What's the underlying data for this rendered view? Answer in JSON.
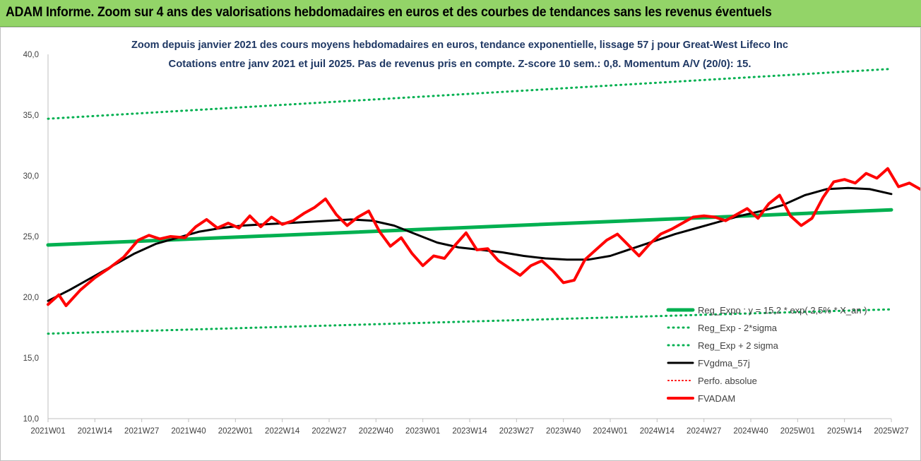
{
  "banner": {
    "title": "ADAM Informe. Zoom sur 4 ans des valorisations hebdomadaires en euros et des courbes de tendances sans les revenus éventuels"
  },
  "chart_data": {
    "type": "line",
    "title": "Zoom depuis janvier 2021 des cours moyens hebdomadaires en euros, tendance exponentielle, lissage 57 j pour Great-West Lifeco Inc",
    "subtitle": "Cotations entre janv 2021 et juil 2025. Pas de revenus pris en compte. Z-score 10 sem.: 0,8. Momentum A/V (20/0): 15.",
    "ylim": [
      10,
      40
    ],
    "yticks": [
      "10,0",
      "15,0",
      "20,0",
      "25,0",
      "30,0",
      "35,0",
      "40,0"
    ],
    "x_tick_labels": [
      "2021W01",
      "2021W14",
      "2021W27",
      "2021W40",
      "2022W01",
      "2022W14",
      "2022W27",
      "2022W40",
      "2023W01",
      "2023W14",
      "2023W27",
      "2023W40",
      "2024W01",
      "2024W14",
      "2024W27",
      "2024W40",
      "2025W01",
      "2025W14",
      "2025W27"
    ],
    "grid": false,
    "legend_position": "bottom-right",
    "series": [
      {
        "name": "Reg_Expo : y = 15,2 * exp( 2,5% * X_an )",
        "color": "#00b050",
        "style": "solid",
        "points": [
          [
            0,
            24.3
          ],
          [
            234,
            27.2
          ]
        ]
      },
      {
        "name": "Reg_Exp - 2*sigma",
        "color": "#00b050",
        "style": "dotted",
        "points": [
          [
            0,
            17.0
          ],
          [
            234,
            19.0
          ]
        ]
      },
      {
        "name": "Reg_Exp + 2 sigma",
        "color": "#00b050",
        "style": "dotted",
        "points": [
          [
            0,
            34.7
          ],
          [
            234,
            38.8
          ]
        ]
      },
      {
        "name": "FVgdma_57j",
        "color": "#000000",
        "style": "solid",
        "points": [
          [
            0,
            19.7
          ],
          [
            6,
            20.6
          ],
          [
            12,
            21.6
          ],
          [
            18,
            22.6
          ],
          [
            24,
            23.6
          ],
          [
            30,
            24.4
          ],
          [
            36,
            24.9
          ],
          [
            42,
            25.4
          ],
          [
            48,
            25.7
          ],
          [
            54,
            25.9
          ],
          [
            60,
            26.0
          ],
          [
            66,
            26.1
          ],
          [
            72,
            26.2
          ],
          [
            78,
            26.3
          ],
          [
            84,
            26.4
          ],
          [
            90,
            26.3
          ],
          [
            96,
            25.9
          ],
          [
            102,
            25.2
          ],
          [
            108,
            24.5
          ],
          [
            114,
            24.1
          ],
          [
            120,
            23.9
          ],
          [
            126,
            23.7
          ],
          [
            132,
            23.4
          ],
          [
            138,
            23.2
          ],
          [
            144,
            23.1
          ],
          [
            150,
            23.1
          ],
          [
            156,
            23.4
          ],
          [
            162,
            24.0
          ],
          [
            168,
            24.6
          ],
          [
            174,
            25.2
          ],
          [
            180,
            25.7
          ],
          [
            186,
            26.2
          ],
          [
            192,
            26.7
          ],
          [
            198,
            27.1
          ],
          [
            204,
            27.6
          ],
          [
            210,
            28.4
          ],
          [
            216,
            28.9
          ],
          [
            222,
            29.0
          ],
          [
            228,
            28.9
          ],
          [
            234,
            28.5
          ]
        ]
      },
      {
        "name": "Perfo. absolue",
        "color": "#ff0000",
        "style": "dotted",
        "points": []
      },
      {
        "name": "FVADAM",
        "color": "#ff0000",
        "style": "solid",
        "points": [
          [
            0,
            19.4
          ],
          [
            3,
            20.2
          ],
          [
            5,
            19.3
          ],
          [
            9,
            20.6
          ],
          [
            13,
            21.6
          ],
          [
            17,
            22.4
          ],
          [
            21,
            23.3
          ],
          [
            25,
            24.7
          ],
          [
            28,
            25.1
          ],
          [
            31,
            24.8
          ],
          [
            34,
            25.0
          ],
          [
            38,
            24.9
          ],
          [
            41,
            25.8
          ],
          [
            44,
            26.4
          ],
          [
            47,
            25.7
          ],
          [
            50,
            26.1
          ],
          [
            53,
            25.7
          ],
          [
            56,
            26.7
          ],
          [
            59,
            25.8
          ],
          [
            62,
            26.6
          ],
          [
            65,
            26.0
          ],
          [
            68,
            26.3
          ],
          [
            71,
            26.9
          ],
          [
            74,
            27.4
          ],
          [
            77,
            28.1
          ],
          [
            80,
            26.8
          ],
          [
            83,
            25.9
          ],
          [
            86,
            26.6
          ],
          [
            89,
            27.1
          ],
          [
            92,
            25.4
          ],
          [
            95,
            24.2
          ],
          [
            98,
            24.9
          ],
          [
            101,
            23.6
          ],
          [
            104,
            22.6
          ],
          [
            107,
            23.4
          ],
          [
            110,
            23.2
          ],
          [
            113,
            24.3
          ],
          [
            116,
            25.3
          ],
          [
            119,
            23.9
          ],
          [
            122,
            24.0
          ],
          [
            125,
            23.0
          ],
          [
            128,
            22.4
          ],
          [
            131,
            21.8
          ],
          [
            134,
            22.6
          ],
          [
            137,
            23.0
          ],
          [
            140,
            22.2
          ],
          [
            143,
            21.2
          ],
          [
            146,
            21.4
          ],
          [
            149,
            23.1
          ],
          [
            152,
            23.9
          ],
          [
            155,
            24.7
          ],
          [
            158,
            25.2
          ],
          [
            161,
            24.3
          ],
          [
            164,
            23.4
          ],
          [
            167,
            24.4
          ],
          [
            170,
            25.2
          ],
          [
            173,
            25.6
          ],
          [
            176,
            26.1
          ],
          [
            179,
            26.6
          ],
          [
            182,
            26.7
          ],
          [
            185,
            26.6
          ],
          [
            188,
            26.3
          ],
          [
            191,
            26.8
          ],
          [
            194,
            27.3
          ],
          [
            197,
            26.5
          ],
          [
            200,
            27.7
          ],
          [
            203,
            28.4
          ],
          [
            206,
            26.7
          ],
          [
            209,
            25.9
          ],
          [
            212,
            26.5
          ],
          [
            215,
            28.2
          ],
          [
            218,
            29.5
          ],
          [
            221,
            29.7
          ],
          [
            224,
            29.4
          ],
          [
            227,
            30.2
          ],
          [
            230,
            29.8
          ],
          [
            233,
            30.6
          ],
          [
            236,
            29.1
          ],
          [
            239,
            29.4
          ],
          [
            242,
            28.9
          ]
        ]
      }
    ]
  },
  "legend": {
    "items": [
      {
        "label": "Reg_Expo : y = 15,2 * exp( 2,5% * X_an )",
        "color": "#00b050",
        "style": "solid",
        "width": 5
      },
      {
        "label": "Reg_Exp - 2*sigma",
        "color": "#00b050",
        "style": "dotted",
        "width": 3
      },
      {
        "label": "Reg_Exp + 2 sigma",
        "color": "#00b050",
        "style": "dotted",
        "width": 3
      },
      {
        "label": "FVgdma_57j",
        "color": "#000000",
        "style": "solid",
        "width": 3
      },
      {
        "label": "Perfo. absolue",
        "color": "#ff0000",
        "style": "dotted",
        "width": 2
      },
      {
        "label": "FVADAM",
        "color": "#ff0000",
        "style": "solid",
        "width": 4
      }
    ]
  }
}
